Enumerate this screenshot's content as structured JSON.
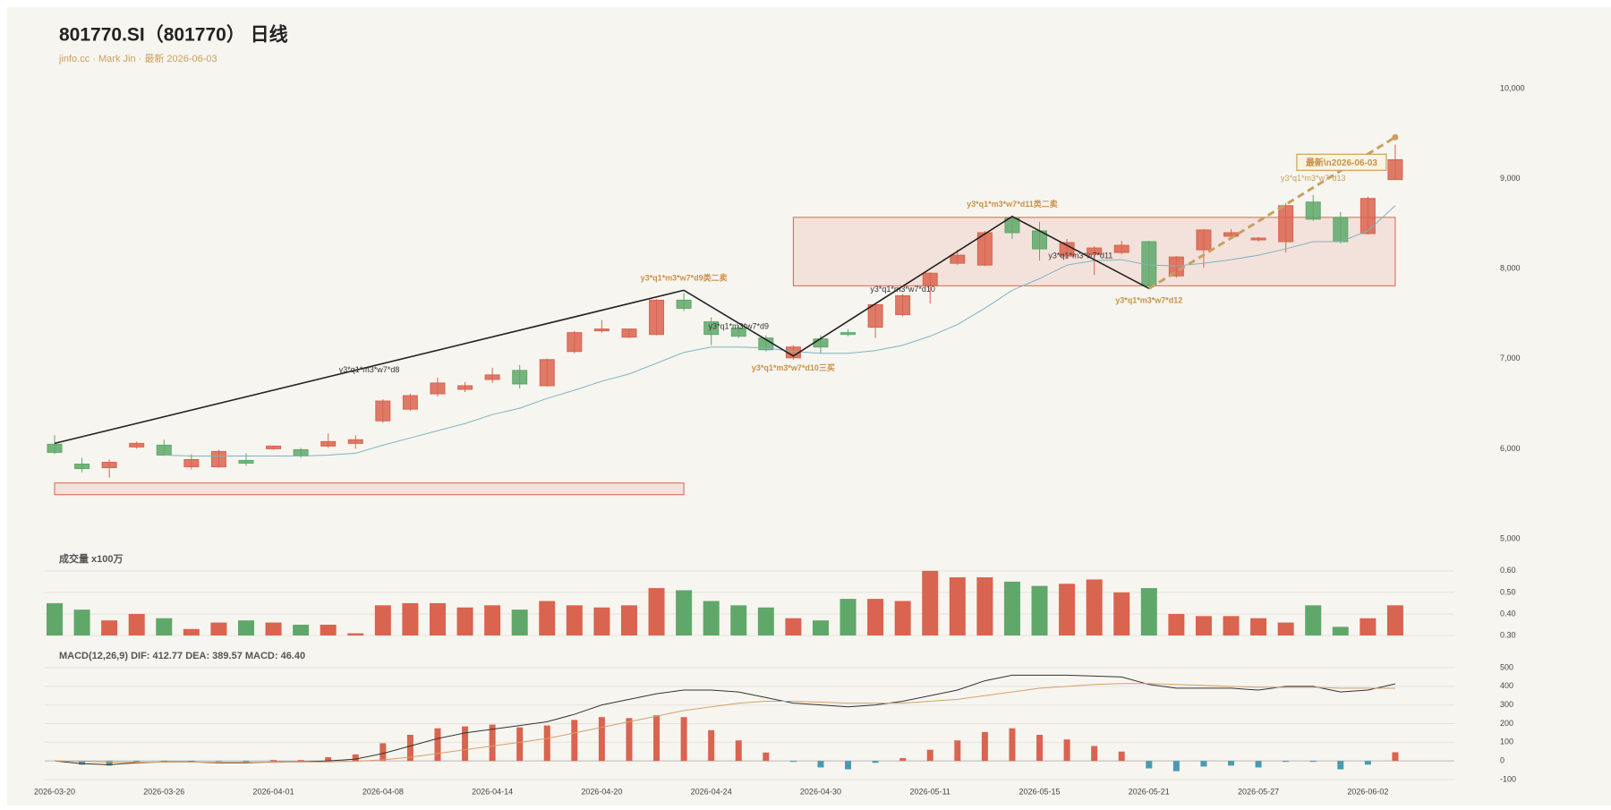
{
  "chart_data": [
    {
      "type": "candlestick",
      "title": "801770.SI（801770） 日线",
      "subtitle": "jinfo.cc · Mark Jin · 最新 2026-06-03",
      "categories": [
        "2026-03-20",
        null,
        null,
        null,
        "2026-03-26",
        null,
        null,
        null,
        "2026-04-01",
        null,
        null,
        null,
        "2026-04-08",
        null,
        null,
        null,
        "2026-04-14",
        null,
        null,
        null,
        "2026-04-20",
        null,
        null,
        null,
        "2026-04-24",
        null,
        null,
        null,
        "2026-04-30",
        null,
        null,
        null,
        "2026-05-11",
        null,
        null,
        null,
        "2026-05-15",
        null,
        null,
        null,
        "2026-05-21",
        null,
        null,
        null,
        "2026-05-27",
        null,
        null,
        null,
        "2026-06-02",
        null
      ],
      "open": [
        6050,
        5830,
        5790,
        6020,
        6040,
        5800,
        5800,
        5870,
        6000,
        5990,
        6030,
        6060,
        6310,
        6440,
        6610,
        6660,
        6770,
        6870,
        6700,
        7080,
        7310,
        7240,
        7270,
        7650,
        7410,
        7340,
        7230,
        7010,
        7220,
        7290,
        7350,
        7490,
        7810,
        8060,
        8040,
        8560,
        8420,
        8140,
        8160,
        8180,
        8300,
        7920,
        8210,
        8360,
        8320,
        8300,
        8740,
        8570,
        8390,
        8990
      ],
      "high": [
        6150,
        5900,
        5880,
        6080,
        6100,
        5940,
        5990,
        5950,
        6030,
        6010,
        6170,
        6150,
        6550,
        6610,
        6790,
        6740,
        6900,
        6930,
        7000,
        7310,
        7430,
        7330,
        7660,
        7730,
        7460,
        7370,
        7260,
        7150,
        7260,
        7330,
        7620,
        7720,
        7960,
        8210,
        8420,
        8590,
        8520,
        8330,
        8250,
        8310,
        8310,
        8140,
        8440,
        8440,
        8350,
        8730,
        8820,
        8630,
        8800,
        9380
      ],
      "low": [
        5940,
        5740,
        5680,
        6000,
        5920,
        5770,
        5790,
        5810,
        5990,
        5900,
        6010,
        6000,
        6290,
        6420,
        6580,
        6630,
        6730,
        6670,
        6690,
        7060,
        7290,
        7230,
        7260,
        7530,
        7150,
        7230,
        7080,
        6990,
        7060,
        7250,
        7230,
        7470,
        7610,
        8040,
        8030,
        8330,
        8090,
        8110,
        7930,
        8160,
        7780,
        7900,
        8010,
        8330,
        8300,
        8180,
        8530,
        8280,
        8380,
        8990
      ],
      "close": [
        5960,
        5780,
        5850,
        6060,
        5930,
        5880,
        5970,
        5840,
        6030,
        5920,
        6080,
        6100,
        6530,
        6590,
        6730,
        6700,
        6820,
        6720,
        6990,
        7290,
        7330,
        7330,
        7650,
        7560,
        7270,
        7250,
        7100,
        7130,
        7130,
        7270,
        7600,
        7700,
        7950,
        8150,
        8400,
        8400,
        8220,
        8290,
        8230,
        8260,
        7810,
        8130,
        8430,
        8400,
        8340,
        8700,
        8550,
        8300,
        8780,
        9210
      ],
      "ma": {
        "color": "#7fb3c0",
        "values": [
          null,
          null,
          null,
          null,
          5930,
          5920,
          5920,
          5920,
          5920,
          5920,
          5930,
          5950,
          6040,
          6120,
          6200,
          6280,
          6380,
          6450,
          6560,
          6650,
          6750,
          6830,
          6950,
          7070,
          7130,
          7130,
          7120,
          7080,
          7060,
          7060,
          7090,
          7150,
          7250,
          7380,
          7560,
          7760,
          7890,
          8040,
          8090,
          8100,
          8040,
          8030,
          8060,
          8100,
          8150,
          8220,
          8300,
          8300,
          8420,
          8700
        ]
      },
      "up_color": "#d9644f",
      "down_color": "#5fa86a",
      "ylim": [
        5000,
        10000
      ],
      "yticks": [
        {
          "value": 5000,
          "label": "5,000"
        },
        {
          "value": 6000,
          "label": "6,000"
        },
        {
          "value": 7000,
          "label": "7,000"
        },
        {
          "value": 8000,
          "label": "8,000"
        },
        {
          "value": 9000,
          "label": "9,000"
        },
        {
          "value": 10000,
          "label": "10,000"
        }
      ],
      "grid": false,
      "zones": [
        {
          "x": [
            0,
            23
          ],
          "ylim": [
            5490,
            5620
          ]
        },
        {
          "x": [
            27,
            49
          ],
          "ylim": [
            7810,
            8570
          ]
        }
      ],
      "pivots": [
        {
          "x": 0,
          "value": 6060
        },
        {
          "x": 23,
          "value": 7760,
          "label": "y3*q1*m3*w7*d9类二卖"
        },
        {
          "x": 27,
          "value": 7030,
          "label": "y3*q1*m3*w7*d10三买"
        },
        {
          "x": 35,
          "value": 8580,
          "label": "y3*q1*m3*w7*d11类二卖"
        },
        {
          "x": 40,
          "value": 7780,
          "label": "y3*q1*m3*w7*d12"
        }
      ],
      "segment_labels": [
        "y3*q1*m3*w7*d8",
        "y3*q1*m3*w7*d9",
        "y3*q1*m3*w7*d10",
        "y3*q1*m3*w7*d11"
      ],
      "trend": {
        "x": [
          40,
          49
        ],
        "values": [
          7780,
          9460
        ],
        "label": "y3*q1*m3*w7*d13",
        "annotation": "最新\\n2026-06-03"
      }
    },
    {
      "type": "bar",
      "title": "成交量 x100万",
      "values": [
        0.45,
        0.42,
        0.37,
        0.4,
        0.38,
        0.33,
        0.36,
        0.37,
        0.36,
        0.35,
        0.35,
        0.31,
        0.44,
        0.45,
        0.45,
        0.43,
        0.44,
        0.42,
        0.46,
        0.44,
        0.43,
        0.44,
        0.52,
        0.51,
        0.46,
        0.44,
        0.43,
        0.38,
        0.37,
        0.47,
        0.47,
        0.46,
        0.6,
        0.57,
        0.57,
        0.55,
        0.53,
        0.54,
        0.56,
        0.5,
        0.52,
        0.4,
        0.39,
        0.39,
        0.38,
        0.36,
        0.44,
        0.34,
        0.38,
        0.44
      ],
      "ylim": [
        0.3,
        0.62
      ],
      "yticks": [
        {
          "value": 0.3,
          "label": "0.30"
        },
        {
          "value": 0.4,
          "label": "0.40"
        },
        {
          "value": 0.5,
          "label": "0.50"
        },
        {
          "value": 0.6,
          "label": "0.60"
        }
      ],
      "grid": true
    },
    {
      "type": "macd",
      "title": "MACD(12,26,9) DIF: 412.77 DEA: 389.57 MACD: 46.40",
      "series": [
        {
          "color": "#333333",
          "values": [
            0,
            -15,
            -20,
            -10,
            -5,
            -5,
            -10,
            -10,
            -5,
            -5,
            0,
            10,
            40,
            80,
            120,
            150,
            170,
            190,
            210,
            250,
            300,
            330,
            360,
            380,
            380,
            370,
            340,
            310,
            300,
            290,
            300,
            320,
            350,
            380,
            430,
            460,
            460,
            460,
            455,
            450,
            410,
            390,
            390,
            390,
            380,
            400,
            400,
            370,
            380,
            412.77
          ]
        },
        {
          "color": "#d4a06a",
          "values": [
            0,
            -3,
            -6,
            -7,
            -6,
            -6,
            -7,
            -7,
            -7,
            -6,
            -5,
            -2,
            6,
            20,
            40,
            60,
            80,
            100,
            120,
            150,
            180,
            210,
            240,
            270,
            290,
            310,
            320,
            320,
            315,
            310,
            310,
            310,
            320,
            330,
            350,
            370,
            390,
            400,
            410,
            415,
            415,
            410,
            405,
            400,
            395,
            395,
            395,
            390,
            390,
            389.57
          ]
        }
      ],
      "histogram": {
        "up_color": "#d9644f",
        "down_color": "#4a9ab0",
        "values": [
          0,
          -20,
          -25,
          -5,
          -5,
          -5,
          -3,
          -10,
          5,
          5,
          20,
          35,
          95,
          140,
          175,
          185,
          195,
          180,
          190,
          220,
          235,
          230,
          245,
          235,
          165,
          110,
          45,
          -5,
          -35,
          -45,
          -10,
          15,
          60,
          110,
          155,
          175,
          140,
          115,
          80,
          50,
          -40,
          -55,
          -30,
          -25,
          -35,
          -5,
          -5,
          -45,
          -20,
          46.4
        ]
      },
      "ylim": [
        -100,
        500
      ],
      "yticks": [
        -100,
        0,
        100,
        200,
        300,
        400,
        500
      ],
      "grid": true
    }
  ]
}
